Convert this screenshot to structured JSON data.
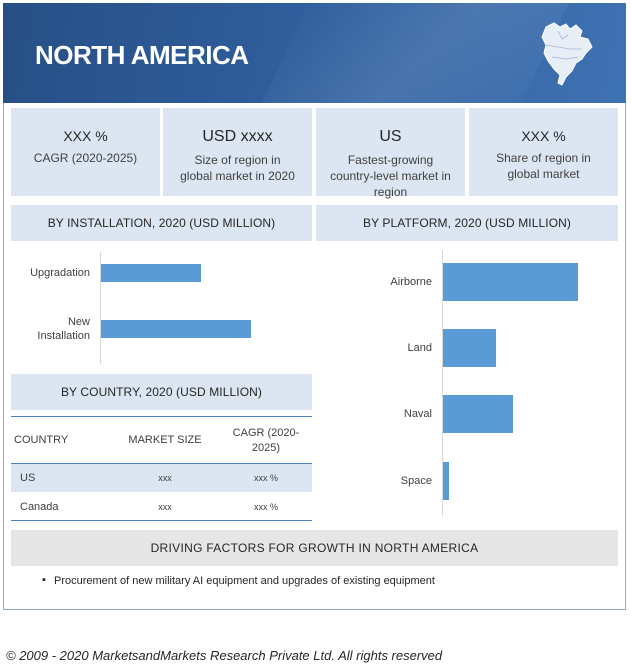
{
  "header": {
    "title": "NORTH AMERICA",
    "map_icon": "north-america-map-icon"
  },
  "stats": [
    {
      "main": "XXX %",
      "sub": "CAGR (2020-2025)"
    },
    {
      "main": "USD xxxx",
      "sub": "Size of region in global market in 2020"
    },
    {
      "main": "US",
      "sub": "Fastest-growing country-level market in region"
    },
    {
      "main": "XXX %",
      "sub": "Share of region in global market"
    }
  ],
  "chart_data": [
    {
      "type": "bar",
      "orientation": "horizontal",
      "title": "BY INSTALLATION, 2020 (USD MILLION)",
      "categories": [
        "Upgradation",
        "New Installation"
      ],
      "values": [
        2.0,
        3.0
      ],
      "xlim": [
        0,
        4
      ],
      "grid": false,
      "color": "#5b9bd5"
    },
    {
      "type": "bar",
      "orientation": "horizontal",
      "title": "BY PLATFORM, 2020 (USD MILLION)",
      "categories": [
        "Airborne",
        "Land",
        "Naval",
        "Space"
      ],
      "values": [
        2.7,
        1.05,
        1.4,
        0.12
      ],
      "xlim": [
        0,
        3.5
      ],
      "grid": false,
      "color": "#5b9bd5"
    },
    {
      "type": "table",
      "title": "BY COUNTRY, 2020 (USD MILLION)",
      "columns": [
        "COUNTRY",
        "MARKET SIZE",
        "CAGR (2020-2025)"
      ],
      "rows": [
        [
          "US",
          "xxx",
          "xxx %"
        ],
        [
          "Canada",
          "xxx",
          "xxx %"
        ]
      ]
    }
  ],
  "drivers": {
    "title": "DRIVING FACTORS FOR GROWTH IN NORTH AMERICA",
    "items": [
      "Procurement of new military AI equipment and upgrades of existing equipment"
    ]
  },
  "copyright": "© 2009 - 2020 MarketsandMarkets Research Private Ltd. All rights reserved"
}
